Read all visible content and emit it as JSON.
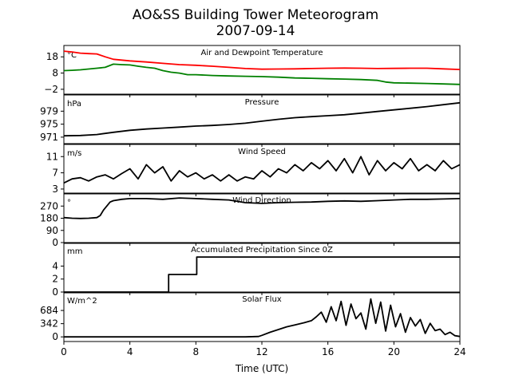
{
  "chart_data": {
    "type": "line",
    "title": "AO&SS Building Tower Meteorogram",
    "subtitle": "2007-09-14",
    "xlabel": "Time (UTC)",
    "xlim": [
      0,
      24
    ],
    "xticks": [
      0,
      4,
      8,
      12,
      16,
      20,
      24
    ],
    "x_tick_labels": [
      "0",
      "4",
      "8",
      "12",
      "16",
      "20",
      "24"
    ],
    "panels": [
      {
        "title": "Air and Dewpoint Temperature",
        "unit": "°C",
        "ylim": [
          -5,
          25
        ],
        "yticks": [
          -2,
          8,
          18
        ],
        "y_tick_labels": [
          "−2",
          "8",
          "18"
        ],
        "series": [
          {
            "color": "#ff0000",
            "x": [
              0,
              0.5,
              1,
              1.5,
              2,
              2.5,
              3,
              4,
              5,
              6,
              7,
              8,
              9,
              10,
              11,
              12,
              13,
              14,
              15,
              16,
              17,
              18,
              19,
              20,
              21,
              22,
              23,
              24
            ],
            "y": [
              21.5,
              21,
              20.3,
              20,
              19.8,
              18,
              16.5,
              15.5,
              14.8,
              14,
              13.2,
              12.8,
              12.2,
              11.5,
              10.8,
              10.4,
              10.5,
              10.6,
              10.8,
              11,
              11.1,
              11,
              10.8,
              10.9,
              11,
              11,
              10.6,
              10.2
            ]
          },
          {
            "color": "#008000",
            "x": [
              0,
              0.5,
              1,
              1.5,
              2,
              2.5,
              3,
              3.5,
              4,
              4.5,
              5,
              5.5,
              6,
              6.5,
              7,
              7.5,
              8,
              9,
              10,
              11,
              12,
              13,
              14,
              15,
              16,
              17,
              18,
              19,
              19.5,
              20,
              21,
              22,
              23,
              24
            ],
            "y": [
              9.5,
              9.7,
              10,
              10.5,
              11,
              11.5,
              13.5,
              13.2,
              13,
              12.2,
              11.5,
              11,
              9.5,
              8.5,
              8,
              7,
              7,
              6.5,
              6.2,
              6,
              5.8,
              5.5,
              5,
              4.8,
              4.5,
              4.3,
              4,
              3.5,
              2.5,
              2,
              1.8,
              1.6,
              1.3,
              1
            ]
          }
        ]
      },
      {
        "title": "Pressure",
        "unit": "hPa",
        "ylim": [
          969,
          984
        ],
        "yticks": [
          971,
          975,
          979
        ],
        "y_tick_labels": [
          "971",
          "975",
          "979"
        ],
        "series": [
          {
            "color": "#000000",
            "x": [
              0,
              1,
              2,
              3,
              4,
              5,
              6,
              7,
              8,
              9,
              10,
              11,
              12,
              13,
              14,
              15,
              16,
              17,
              18,
              19,
              20,
              21,
              22,
              23,
              24
            ],
            "y": [
              971.4,
              971.5,
              971.8,
              972.5,
              973.1,
              973.5,
              973.8,
              974.1,
              974.4,
              974.6,
              974.9,
              975.3,
              975.9,
              976.5,
              977,
              977.3,
              977.6,
              977.9,
              978.4,
              978.9,
              979.4,
              979.9,
              980.4,
              981,
              981.6
            ]
          }
        ]
      },
      {
        "title": "Wind Speed",
        "unit": "m/s",
        "ylim": [
          2,
          14
        ],
        "yticks": [
          3,
          7,
          11
        ],
        "y_tick_labels": [
          "3",
          "7",
          "11"
        ],
        "series": [
          {
            "color": "#000000",
            "x": [
              0,
              0.5,
              1,
              1.5,
              2,
              2.5,
              3,
              3.5,
              4,
              4.5,
              5,
              5.5,
              6,
              6.5,
              7,
              7.5,
              8,
              8.5,
              9,
              9.5,
              10,
              10.5,
              11,
              11.5,
              12,
              12.5,
              13,
              13.5,
              14,
              14.5,
              15,
              15.5,
              16,
              16.5,
              17,
              17.5,
              18,
              18.5,
              19,
              19.5,
              20,
              20.5,
              21,
              21.5,
              22,
              22.5,
              23,
              23.5,
              24
            ],
            "y": [
              4.5,
              5.5,
              5.8,
              5,
              6,
              6.5,
              5.5,
              6.8,
              8,
              5.5,
              9,
              7,
              8.5,
              5,
              7.5,
              6,
              7,
              5.5,
              6.5,
              5,
              6.5,
              5,
              6,
              5.5,
              7.5,
              6,
              8,
              7,
              9,
              7.5,
              9.5,
              8,
              10,
              7.5,
              10.5,
              7,
              11,
              6.5,
              10,
              7.5,
              9.5,
              8,
              10.5,
              7.5,
              9,
              7.5,
              10,
              8,
              9
            ]
          }
        ]
      },
      {
        "title": "Wind Direction",
        "unit": "°",
        "ylim": [
          0,
          360
        ],
        "yticks": [
          0,
          90,
          180,
          270
        ],
        "y_tick_labels": [
          "0",
          "90",
          "180",
          "270"
        ],
        "series": [
          {
            "color": "#000000",
            "x": [
              0,
              0.5,
              1,
              1.5,
              2,
              2.2,
              2.4,
              2.6,
              2.8,
              3,
              3.5,
              4,
              5,
              6,
              7,
              8,
              9,
              10,
              11,
              12,
              13,
              14,
              15,
              16,
              17,
              18,
              19,
              20,
              21,
              22,
              23,
              24
            ],
            "y": [
              185,
              180,
              178,
              180,
              185,
              200,
              240,
              270,
              300,
              310,
              320,
              325,
              325,
              320,
              330,
              325,
              320,
              315,
              295,
              290,
              295,
              298,
              300,
              305,
              308,
              305,
              310,
              315,
              320,
              320,
              322,
              325
            ]
          }
        ]
      },
      {
        "title": "Accumulated Precipitation Since 0Z",
        "unit": "mm",
        "ylim": [
          0,
          7.5
        ],
        "yticks": [
          0,
          2,
          4
        ],
        "y_tick_labels": [
          "0",
          "2",
          "4"
        ],
        "series": [
          {
            "color": "#000000",
            "x": [
              0,
              6.35,
              6.35,
              8.05,
              8.05,
              24
            ],
            "y": [
              0,
              0,
              2.7,
              2.7,
              5.4,
              5.4
            ]
          }
        ]
      },
      {
        "title": "Solar Flux",
        "unit": "W/m^2",
        "ylim": [
          -120,
          1140
        ],
        "yticks": [
          0,
          342,
          684
        ],
        "y_tick_labels": [
          "0",
          "342",
          "684"
        ],
        "series": [
          {
            "color": "#000000",
            "x": [
              0,
              6,
              11,
              11.8,
              12,
              12.5,
              13,
              13.5,
              14,
              14.5,
              15,
              15.3,
              15.6,
              15.9,
              16.2,
              16.5,
              16.8,
              17.1,
              17.4,
              17.7,
              18,
              18.3,
              18.6,
              18.9,
              19.2,
              19.5,
              19.8,
              20.1,
              20.4,
              20.7,
              21,
              21.3,
              21.6,
              21.9,
              22.2,
              22.5,
              22.8,
              23.1,
              23.4,
              23.7,
              24
            ],
            "y": [
              0,
              0,
              0,
              10,
              40,
              120,
              190,
              260,
              310,
              360,
              420,
              520,
              640,
              380,
              780,
              420,
              920,
              300,
              850,
              470,
              620,
              200,
              980,
              350,
              900,
              150,
              820,
              260,
              600,
              120,
              500,
              280,
              450,
              90,
              350,
              160,
              200,
              60,
              120,
              30,
              10
            ]
          }
        ]
      }
    ]
  }
}
